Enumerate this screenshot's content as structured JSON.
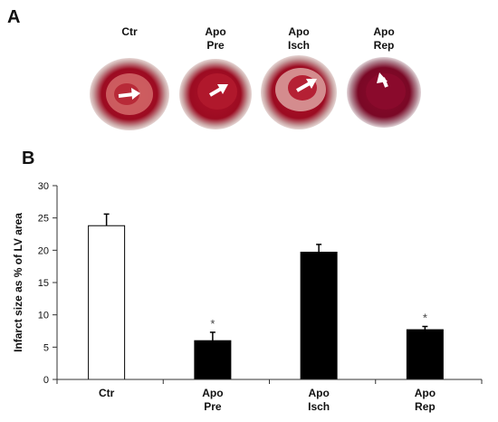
{
  "panel_a": {
    "label": "A",
    "slices": [
      {
        "line1": "Ctr",
        "line2": ""
      },
      {
        "line1": "Apo",
        "line2": "Pre"
      },
      {
        "line1": "Apo",
        "line2": "Isch"
      },
      {
        "line1": "Apo",
        "line2": "Rep"
      }
    ]
  },
  "panel_b": {
    "label": "B"
  },
  "chart_data": {
    "type": "bar",
    "categories": [
      {
        "line1": "Ctr",
        "line2": ""
      },
      {
        "line1": "Apo",
        "line2": "Pre"
      },
      {
        "line1": "Apo",
        "line2": "Isch"
      },
      {
        "line1": "Apo",
        "line2": "Rep"
      }
    ],
    "values": [
      23.8,
      6.0,
      19.7,
      7.7
    ],
    "errors": [
      1.8,
      1.3,
      1.2,
      0.5
    ],
    "significance": [
      "",
      "*",
      "",
      "*"
    ],
    "bar_fill": [
      "#ffffff",
      "#000000",
      "#000000",
      "#000000"
    ],
    "ylabel": "Infarct size as % of LV area",
    "xlabel": "",
    "title": "",
    "ylim": [
      0,
      30
    ],
    "yticks": [
      0,
      5,
      10,
      15,
      20,
      25,
      30
    ],
    "grid": false,
    "legend": "none"
  }
}
